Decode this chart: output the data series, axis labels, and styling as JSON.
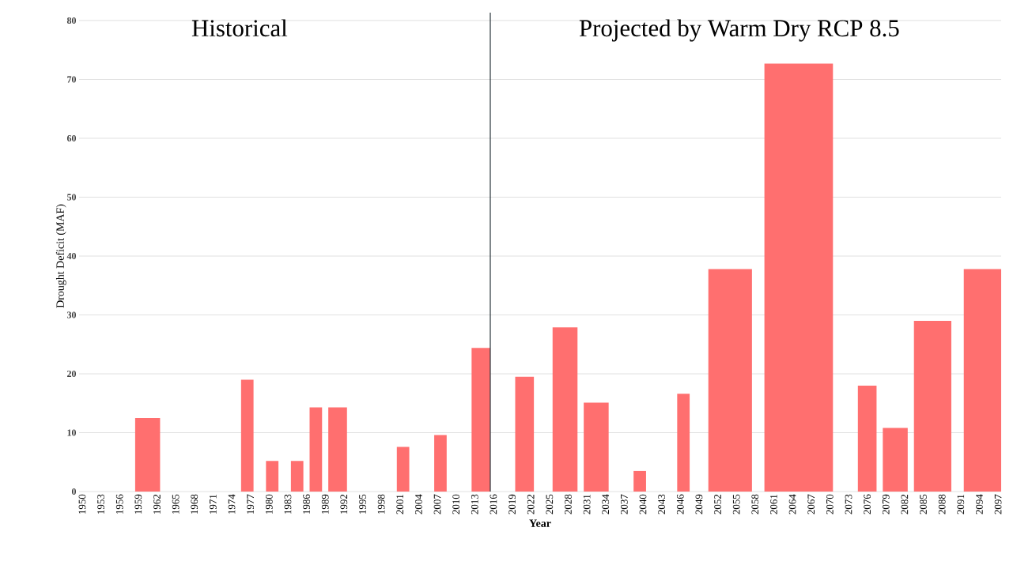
{
  "chart_data": {
    "type": "histogram",
    "bins": [
      1958.5,
      1962.5,
      1975.5,
      1977.5,
      1979.5,
      1981.5,
      1983.5,
      1985.5,
      1986.5,
      1988.5,
      1989.5,
      1992.5,
      2000.5,
      2002.5,
      2006.5,
      2008.5,
      2012.5,
      2015.5,
      2019.5,
      2022.5,
      2025.5,
      2029.5,
      2030.5,
      2034.5,
      2038.5,
      2040.5,
      2045.5,
      2047.5,
      2050.5,
      2057.5,
      2059.5,
      2070.5,
      2074.5,
      2077.5,
      2078.5,
      2082.5,
      2083.5,
      2089.5,
      2091.5,
      2097.5
    ],
    "values": [
      12.5,
      0,
      19,
      0,
      5.2,
      0,
      5.2,
      0,
      14.3,
      0,
      14.3,
      0,
      7.6,
      0,
      9.6,
      0,
      24.4,
      0,
      19.5,
      0,
      27.9,
      0,
      15.1,
      0,
      3.5,
      0,
      16.6,
      0,
      37.8,
      0,
      72.7,
      0,
      18,
      0,
      10.8,
      0,
      29,
      0,
      37.8
    ],
    "color": "#ff6f6f",
    "xlim": [
      1949.5,
      2097.5
    ],
    "xticks": [
      1950,
      1953,
      1956,
      1959,
      1962,
      1965,
      1968,
      1971,
      1974,
      1977,
      1980,
      1983,
      1986,
      1989,
      1992,
      1995,
      1998,
      2001,
      2004,
      2007,
      2010,
      2013,
      2016,
      2019,
      2022,
      2025,
      2028,
      2031,
      2034,
      2037,
      2040,
      2043,
      2046,
      2049,
      2052,
      2055,
      2058,
      2061,
      2064,
      2067,
      2070,
      2073,
      2076,
      2079,
      2082,
      2085,
      2088,
      2091,
      2094,
      2097
    ],
    "ylim": [
      0,
      80
    ],
    "yticks": [
      0,
      10,
      20,
      30,
      40,
      50,
      60,
      70,
      80
    ],
    "xlabel": "Year",
    "ylabel": "Drought Deficit (MAF)",
    "grid": "y",
    "ref_lines": [
      {
        "axis": "x",
        "value": 2015.5,
        "color": "#263238"
      }
    ],
    "annotations": [
      "Historical",
      "Projected by Warm Dry RCP 8.5"
    ]
  }
}
